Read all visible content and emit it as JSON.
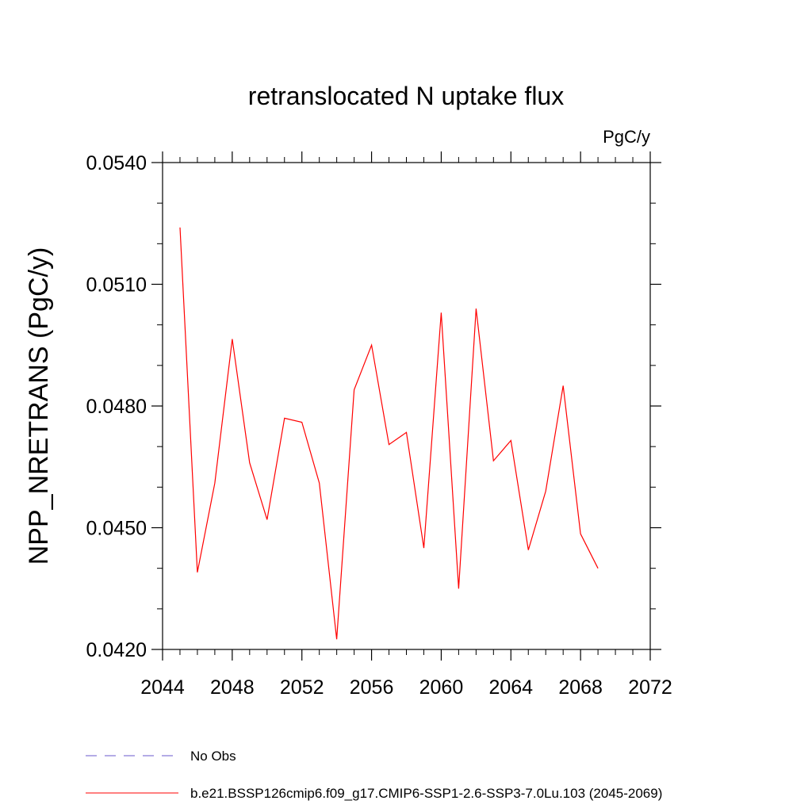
{
  "chart_data": {
    "type": "line",
    "title": "retranslocated N uptake flux",
    "units_label": "PgC/y",
    "xlabel": "",
    "ylabel": "NPP_NRETRANS  (PgC/y)",
    "xlim": [
      2044,
      2072
    ],
    "ylim": [
      0.042,
      0.054
    ],
    "x_ticks": [
      2044,
      2048,
      2052,
      2056,
      2060,
      2064,
      2068,
      2072
    ],
    "x_tick_labels": [
      "2044",
      "2048",
      "2052",
      "2056",
      "2060",
      "2064",
      "2068",
      "2072"
    ],
    "y_ticks": [
      0.042,
      0.045,
      0.048,
      0.051,
      0.054
    ],
    "y_tick_labels": [
      "0.0420",
      "0.0450",
      "0.0480",
      "0.0510",
      "0.0540"
    ],
    "grid": false,
    "legend_placement": "bottom",
    "series": [
      {
        "name": "b.e21.BSSP126cmip6.f09_g17.CMIP6-SSP1-2.6-SSP3-7.0Lu.103 (2045-2069)",
        "color": "#ff0000",
        "style": "solid",
        "x": [
          2045,
          2046,
          2047,
          2048,
          2049,
          2050,
          2051,
          2052,
          2053,
          2054,
          2055,
          2056,
          2057,
          2058,
          2059,
          2060,
          2061,
          2062,
          2063,
          2064,
          2065,
          2066,
          2067,
          2068,
          2069
        ],
        "y": [
          0.0524,
          0.0439,
          0.0461,
          0.04965,
          0.0466,
          0.0452,
          0.0477,
          0.0476,
          0.0461,
          0.04225,
          0.0484,
          0.0495,
          0.04705,
          0.04735,
          0.0445,
          0.0503,
          0.0435,
          0.0504,
          0.04665,
          0.04715,
          0.04445,
          0.0459,
          0.0485,
          0.04485,
          0.044
        ]
      }
    ],
    "legend": [
      {
        "label": "No Obs",
        "color": "#6a5acd",
        "style": "dashed"
      },
      {
        "label": "b.e21.BSSP126cmip6.f09_g17.CMIP6-SSP1-2.6-SSP3-7.0Lu.103 (2045-2069)",
        "color": "#ff0000",
        "style": "solid"
      }
    ]
  }
}
